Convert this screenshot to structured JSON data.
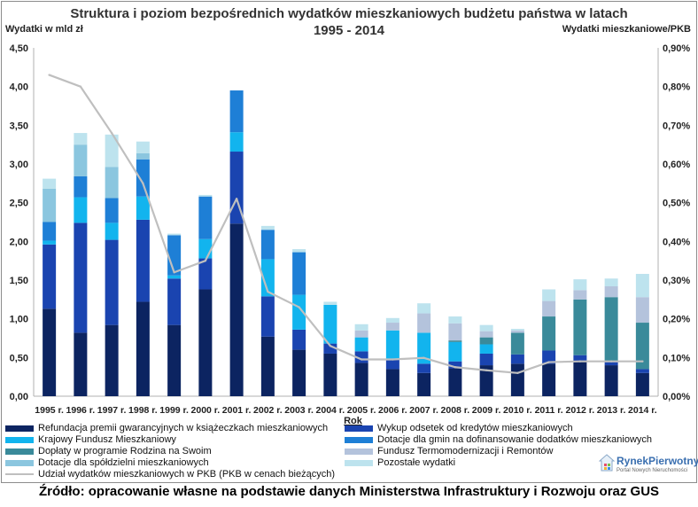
{
  "title_line1": "Struktura i poziom bezpośrednich wydatków mieszkaniowych budżetu państwa w latach",
  "title_line2": "1995 - 2014",
  "y_left_title": "Wydatki w mld zł",
  "y_right_title": "Wydatki mieszkaniowe/PKB",
  "x_title": "Rok",
  "source": "Źródło: opracowanie własne na podstawie danych Ministerstwa Infrastruktury i Rozwoju oraz GUS",
  "logo": {
    "name": "RynekPierwotny",
    "tagline": "Portal Nowych Nieruchomości"
  },
  "chart_data": {
    "type": "bar",
    "stacked": true,
    "title": "Struktura i poziom bezpośrednich wydatków mieszkaniowych budżetu państwa w latach 1995 - 2014",
    "xlabel": "Rok",
    "ylabel": "Wydatki w mld zł",
    "y2label": "Wydatki mieszkaniowe/PKB",
    "ylim": [
      0,
      4.5
    ],
    "y2lim": [
      0,
      0.009
    ],
    "yticks": [
      "0,00",
      "0,50",
      "1,00",
      "1,50",
      "2,00",
      "2,50",
      "3,00",
      "3,50",
      "4,00",
      "4,50"
    ],
    "y2ticks": [
      "0,00%",
      "0,10%",
      "0,20%",
      "0,30%",
      "0,40%",
      "0,50%",
      "0,60%",
      "0,70%",
      "0,80%",
      "0,90%"
    ],
    "grid": false,
    "categories": [
      "1995 r.",
      "1996 r.",
      "1997 r.",
      "1998 r.",
      "1999 r.",
      "2000 r.",
      "2001 r.",
      "2002 r.",
      "2003 r.",
      "2004 r.",
      "2005 r.",
      "2006 r.",
      "2007 r.",
      "2008 r.",
      "2009 r.",
      "2010 r.",
      "2011 r.",
      "2012 r.",
      "2013 r.",
      "2014 r."
    ],
    "series": [
      {
        "name": "Refundacja premii gwarancyjnych w książeczkach mieszkaniowych",
        "color": "#0c2461",
        "values": [
          1.13,
          0.82,
          0.92,
          1.22,
          0.92,
          1.38,
          2.23,
          0.77,
          0.6,
          0.55,
          0.43,
          0.35,
          0.3,
          0.36,
          0.4,
          0.42,
          0.42,
          0.45,
          0.4,
          0.3
        ]
      },
      {
        "name": "Wykup odsetek od kredytów mieszkaniowych",
        "color": "#1a44b0",
        "values": [
          0.83,
          1.42,
          1.1,
          1.06,
          0.6,
          0.4,
          0.93,
          0.52,
          0.26,
          0.13,
          0.15,
          0.13,
          0.12,
          0.09,
          0.15,
          0.12,
          0.17,
          0.08,
          0.04,
          0.05
        ]
      },
      {
        "name": "Krajowy Fundusz Mieszkaniowy",
        "color": "#12b4ee",
        "values": [
          0.05,
          0.33,
          0.22,
          0.3,
          0.04,
          0.25,
          0.25,
          0.48,
          0.45,
          0.5,
          0.18,
          0.37,
          0.4,
          0.25,
          0.12,
          0.0,
          0.0,
          0.0,
          0.0,
          0.0
        ]
      },
      {
        "name": "Dotacje dla gmin na dofinansowanie dodatków mieszkaniowych",
        "color": "#1e7fd6",
        "values": [
          0.24,
          0.27,
          0.32,
          0.48,
          0.52,
          0.55,
          0.54,
          0.38,
          0.55,
          0.0,
          0.0,
          0.0,
          0.0,
          0.0,
          0.0,
          0.0,
          0.0,
          0.0,
          0.0,
          0.0
        ]
      },
      {
        "name": "Dopłaty w programie Rodzina na Swoim",
        "color": "#3a8a9a",
        "values": [
          0.0,
          0.0,
          0.0,
          0.0,
          0.0,
          0.0,
          0.0,
          0.0,
          0.0,
          0.0,
          0.0,
          0.0,
          0.0,
          0.02,
          0.09,
          0.28,
          0.44,
          0.72,
          0.84,
          0.6
        ]
      },
      {
        "name": "Fundusz Termomodernizacji i Remontów",
        "color": "#b4c3dc",
        "values": [
          0.0,
          0.0,
          0.0,
          0.0,
          0.0,
          0.0,
          0.0,
          0.0,
          0.0,
          0.0,
          0.09,
          0.1,
          0.25,
          0.22,
          0.08,
          0.03,
          0.2,
          0.12,
          0.14,
          0.33
        ]
      },
      {
        "name": "Dotacje dla spółdzielni mieszkaniowych",
        "color": "#8bc6df",
        "values": [
          0.43,
          0.41,
          0.4,
          0.08,
          0.0,
          0.0,
          0.0,
          0.0,
          0.0,
          0.0,
          0.0,
          0.0,
          0.0,
          0.0,
          0.0,
          0.0,
          0.0,
          0.0,
          0.0,
          0.0
        ]
      },
      {
        "name": "Pozostałe wydatki",
        "color": "#bde3ee",
        "values": [
          0.13,
          0.15,
          0.42,
          0.15,
          0.02,
          0.02,
          0.0,
          0.05,
          0.04,
          0.04,
          0.08,
          0.06,
          0.13,
          0.09,
          0.08,
          0.02,
          0.15,
          0.14,
          0.1,
          0.3
        ]
      }
    ],
    "line": {
      "name": "Udział wydatków mieszkaniowych w PKB (PKB w cenach bieżących)",
      "color": "#bfbfbf",
      "axis": "right",
      "values": [
        0.0083,
        0.008,
        0.0068,
        0.0055,
        0.0032,
        0.0035,
        0.0051,
        0.0027,
        0.0023,
        0.0013,
        0.00095,
        0.00095,
        0.00099,
        0.00075,
        0.00067,
        0.0006,
        0.00088,
        0.0009,
        0.0009,
        0.0009
      ]
    }
  }
}
